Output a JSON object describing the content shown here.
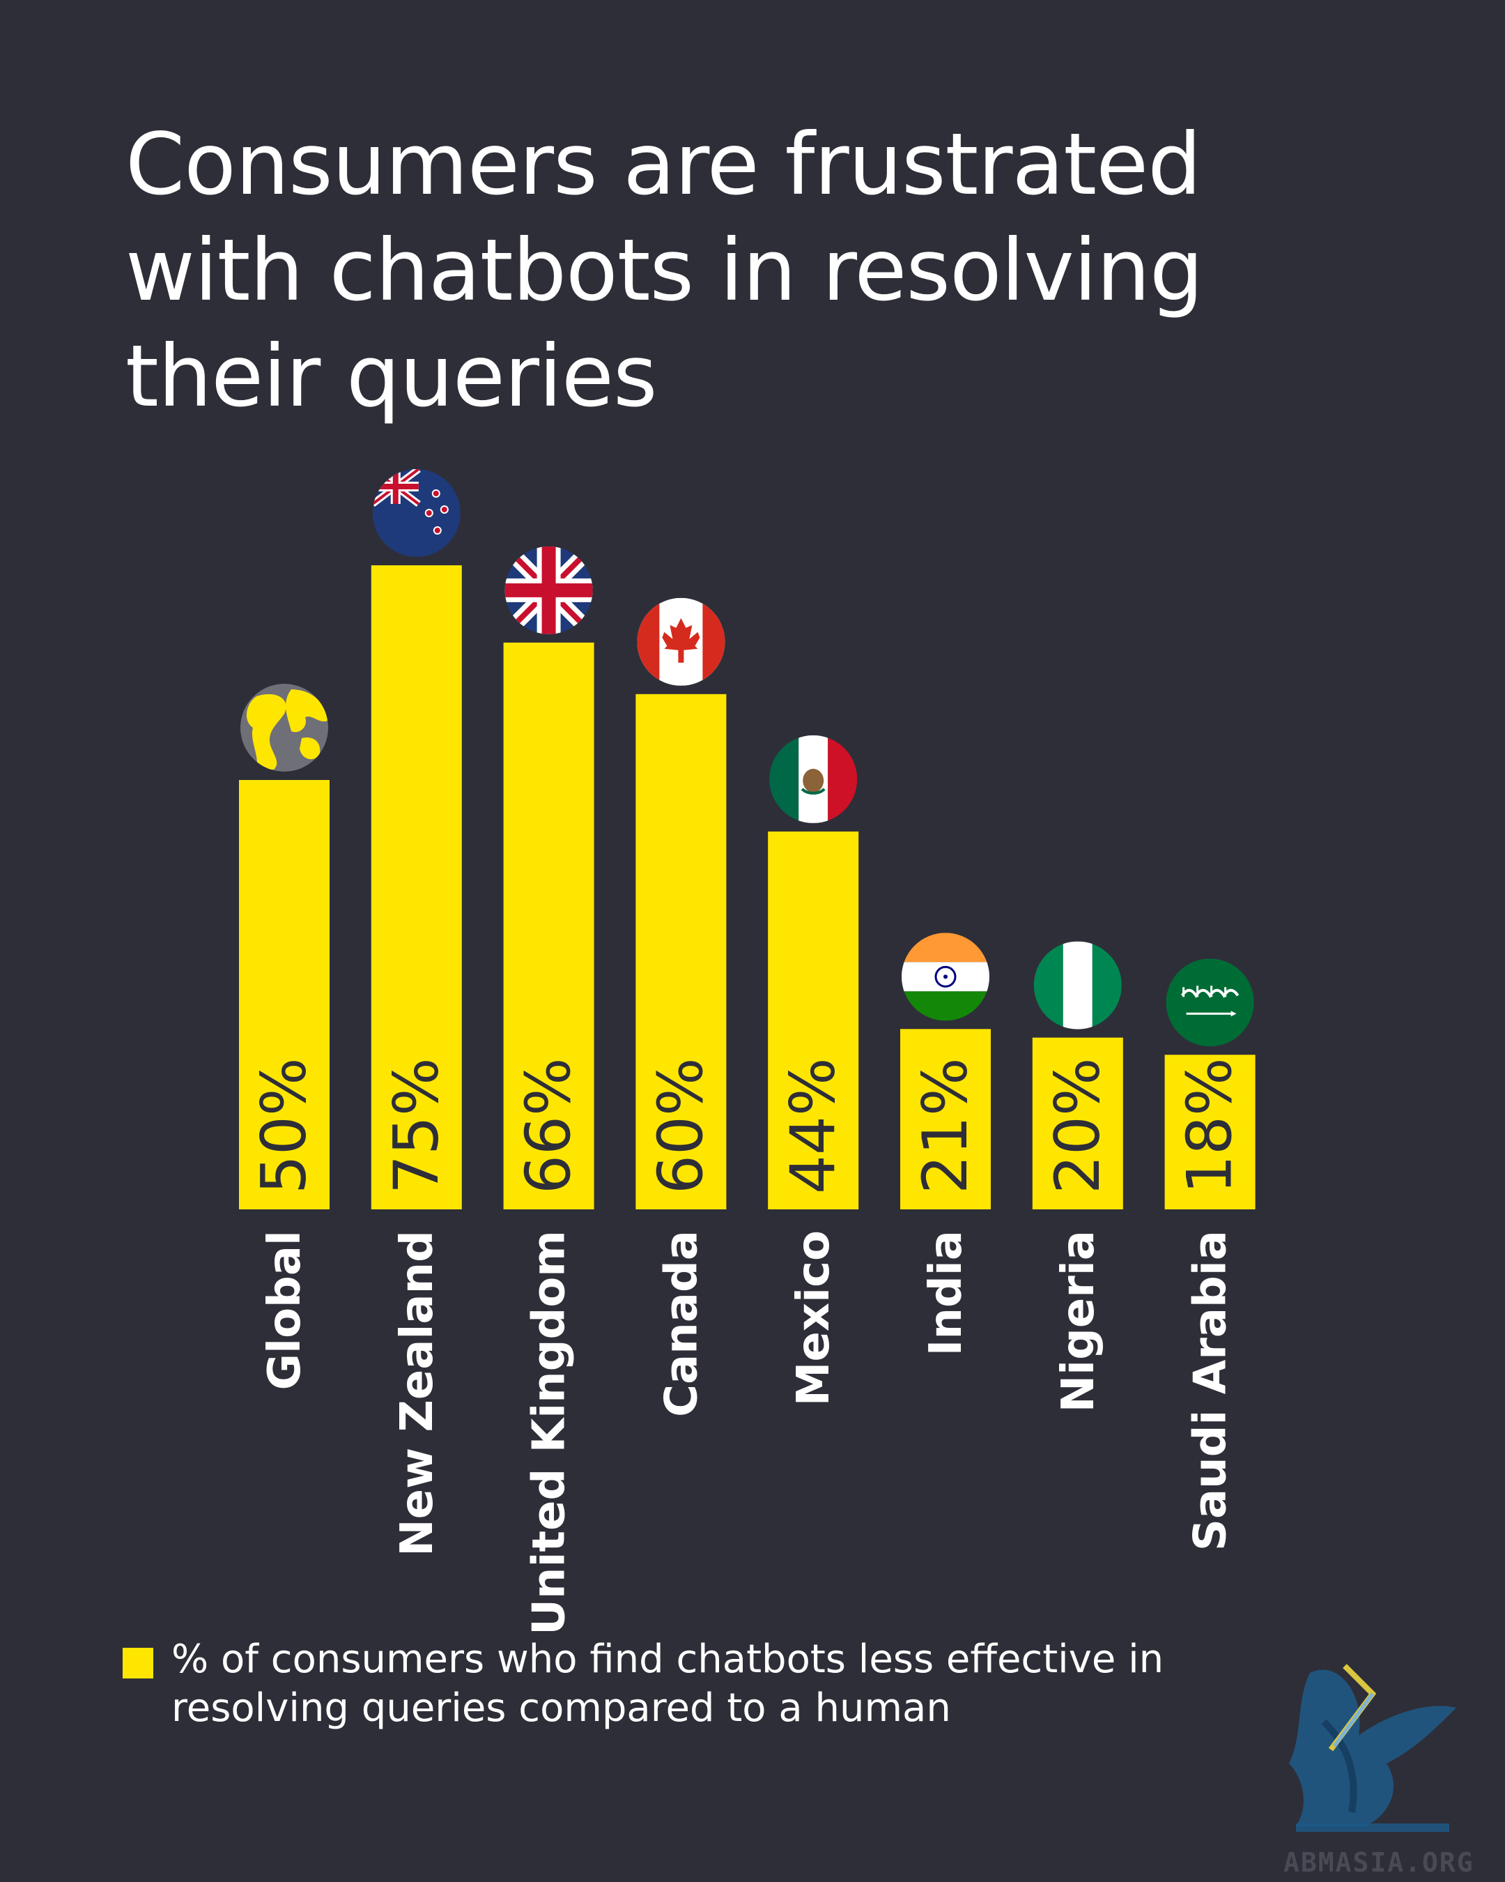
{
  "title": "Consumers are frustrated with chatbots in resolving their queries",
  "legend": {
    "text": "% of consumers who find chatbots less effective in resolving queries compared to a human",
    "color": "#ffe600"
  },
  "colors": {
    "background": "#2e2e38",
    "bar": "#ffe600",
    "text": "#ffffff"
  },
  "watermark": {
    "text": "ABMASIA.ORG",
    "icon": "griffin-logo-icon"
  },
  "chart_data": {
    "type": "bar",
    "title": "Consumers are frustrated with chatbots in resolving their queries",
    "xlabel": "",
    "ylabel": "",
    "ylim": [
      0,
      100
    ],
    "grid": false,
    "legend_position": "bottom-left",
    "categories": [
      "Global",
      "New Zealand",
      "United Kingdom",
      "Canada",
      "Mexico",
      "India",
      "Nigeria",
      "Saudi Arabia"
    ],
    "values": [
      50,
      75,
      66,
      60,
      44,
      21,
      20,
      18
    ],
    "value_labels": [
      "50%",
      "75%",
      "66%",
      "60%",
      "44%",
      "21%",
      "20%",
      "18%"
    ],
    "icons": [
      "globe-icon",
      "new-zealand-flag-icon",
      "united-kingdom-flag-icon",
      "canada-flag-icon",
      "mexico-flag-icon",
      "india-flag-icon",
      "nigeria-flag-icon",
      "saudi-arabia-flag-icon"
    ],
    "series": [
      {
        "name": "% of consumers who find chatbots less effective in resolving queries compared to a human",
        "values": [
          50,
          75,
          66,
          60,
          44,
          21,
          20,
          18
        ]
      }
    ]
  }
}
